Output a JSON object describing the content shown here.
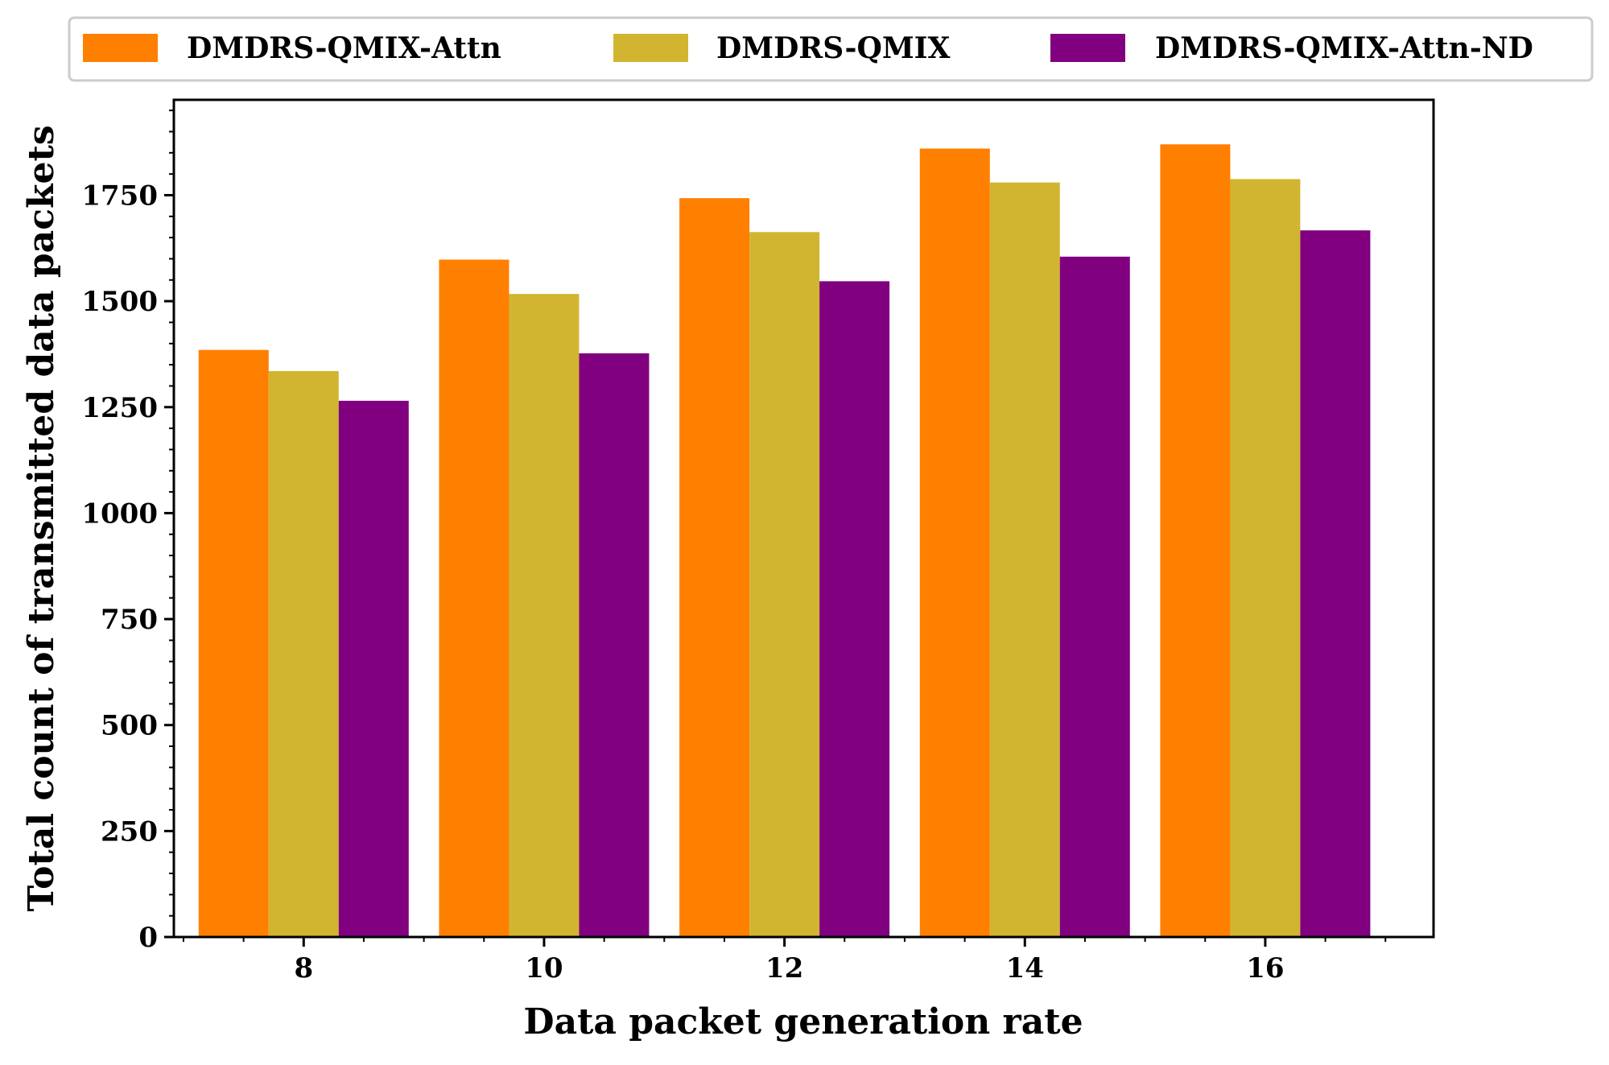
{
  "chart_data": {
    "type": "bar",
    "title": "",
    "xlabel": "Data packet generation rate",
    "ylabel": "Total count of transmitted data packets",
    "categories": [
      "8",
      "10",
      "12",
      "14",
      "16"
    ],
    "series": [
      {
        "name": "DMDRS-QMIX-Attn",
        "color": "#ff7f00",
        "values": [
          1385,
          1598,
          1743,
          1860,
          1870
        ]
      },
      {
        "name": "DMDRS-QMIX",
        "color": "#d1b530",
        "values": [
          1335,
          1517,
          1663,
          1780,
          1788
        ]
      },
      {
        "name": "DMDRS-QMIX-Attn-ND",
        "color": "#800080",
        "values": [
          1265,
          1377,
          1547,
          1605,
          1667
        ]
      }
    ],
    "ylim": [
      0,
      1975
    ],
    "yticks": [
      0,
      250,
      500,
      750,
      1000,
      1250,
      1500,
      1750
    ],
    "legend_position": "top",
    "grid": false
  }
}
